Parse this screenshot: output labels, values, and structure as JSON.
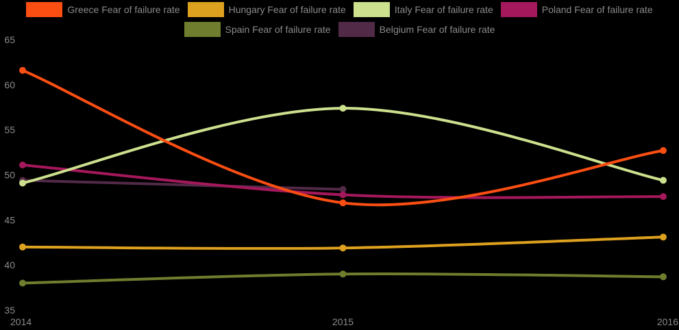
{
  "colors": {
    "background": "#000000",
    "text": "#8b8b8b"
  },
  "legend": {
    "rows": [
      [
        0,
        1,
        2,
        3
      ],
      [
        4,
        5
      ]
    ]
  },
  "chart_data": {
    "type": "line",
    "title": "",
    "xlabel": "",
    "ylabel": "",
    "x_labels": [
      "2014",
      "2015",
      "2016"
    ],
    "yticks": [
      "35",
      "40",
      "45",
      "50",
      "55",
      "60",
      "65"
    ],
    "ylim": [
      35,
      65
    ],
    "grid": false,
    "legend_position": "top",
    "line_style": "spline",
    "series": [
      {
        "name": "Greece Fear of failure rate",
        "color": "#fb4e13",
        "values": [
          61.6,
          46.9,
          52.7
        ]
      },
      {
        "name": "Hungary Fear of failure rate",
        "color": "#dea11f",
        "values": [
          42.0,
          41.9,
          43.1
        ]
      },
      {
        "name": "Italy Fear of failure rate",
        "color": "#cce08e",
        "values": [
          49.1,
          57.4,
          49.4
        ]
      },
      {
        "name": "Poland Fear of failure rate",
        "color": "#a5185c",
        "values": [
          51.1,
          47.8,
          47.6
        ]
      },
      {
        "name": "Spain Fear of failure rate",
        "color": "#6e7e2e",
        "values": [
          38.0,
          39.0,
          38.7
        ]
      },
      {
        "name": "Belgium Fear of failure rate",
        "color": "#512a47",
        "values": [
          49.4,
          48.4,
          null
        ]
      }
    ]
  }
}
